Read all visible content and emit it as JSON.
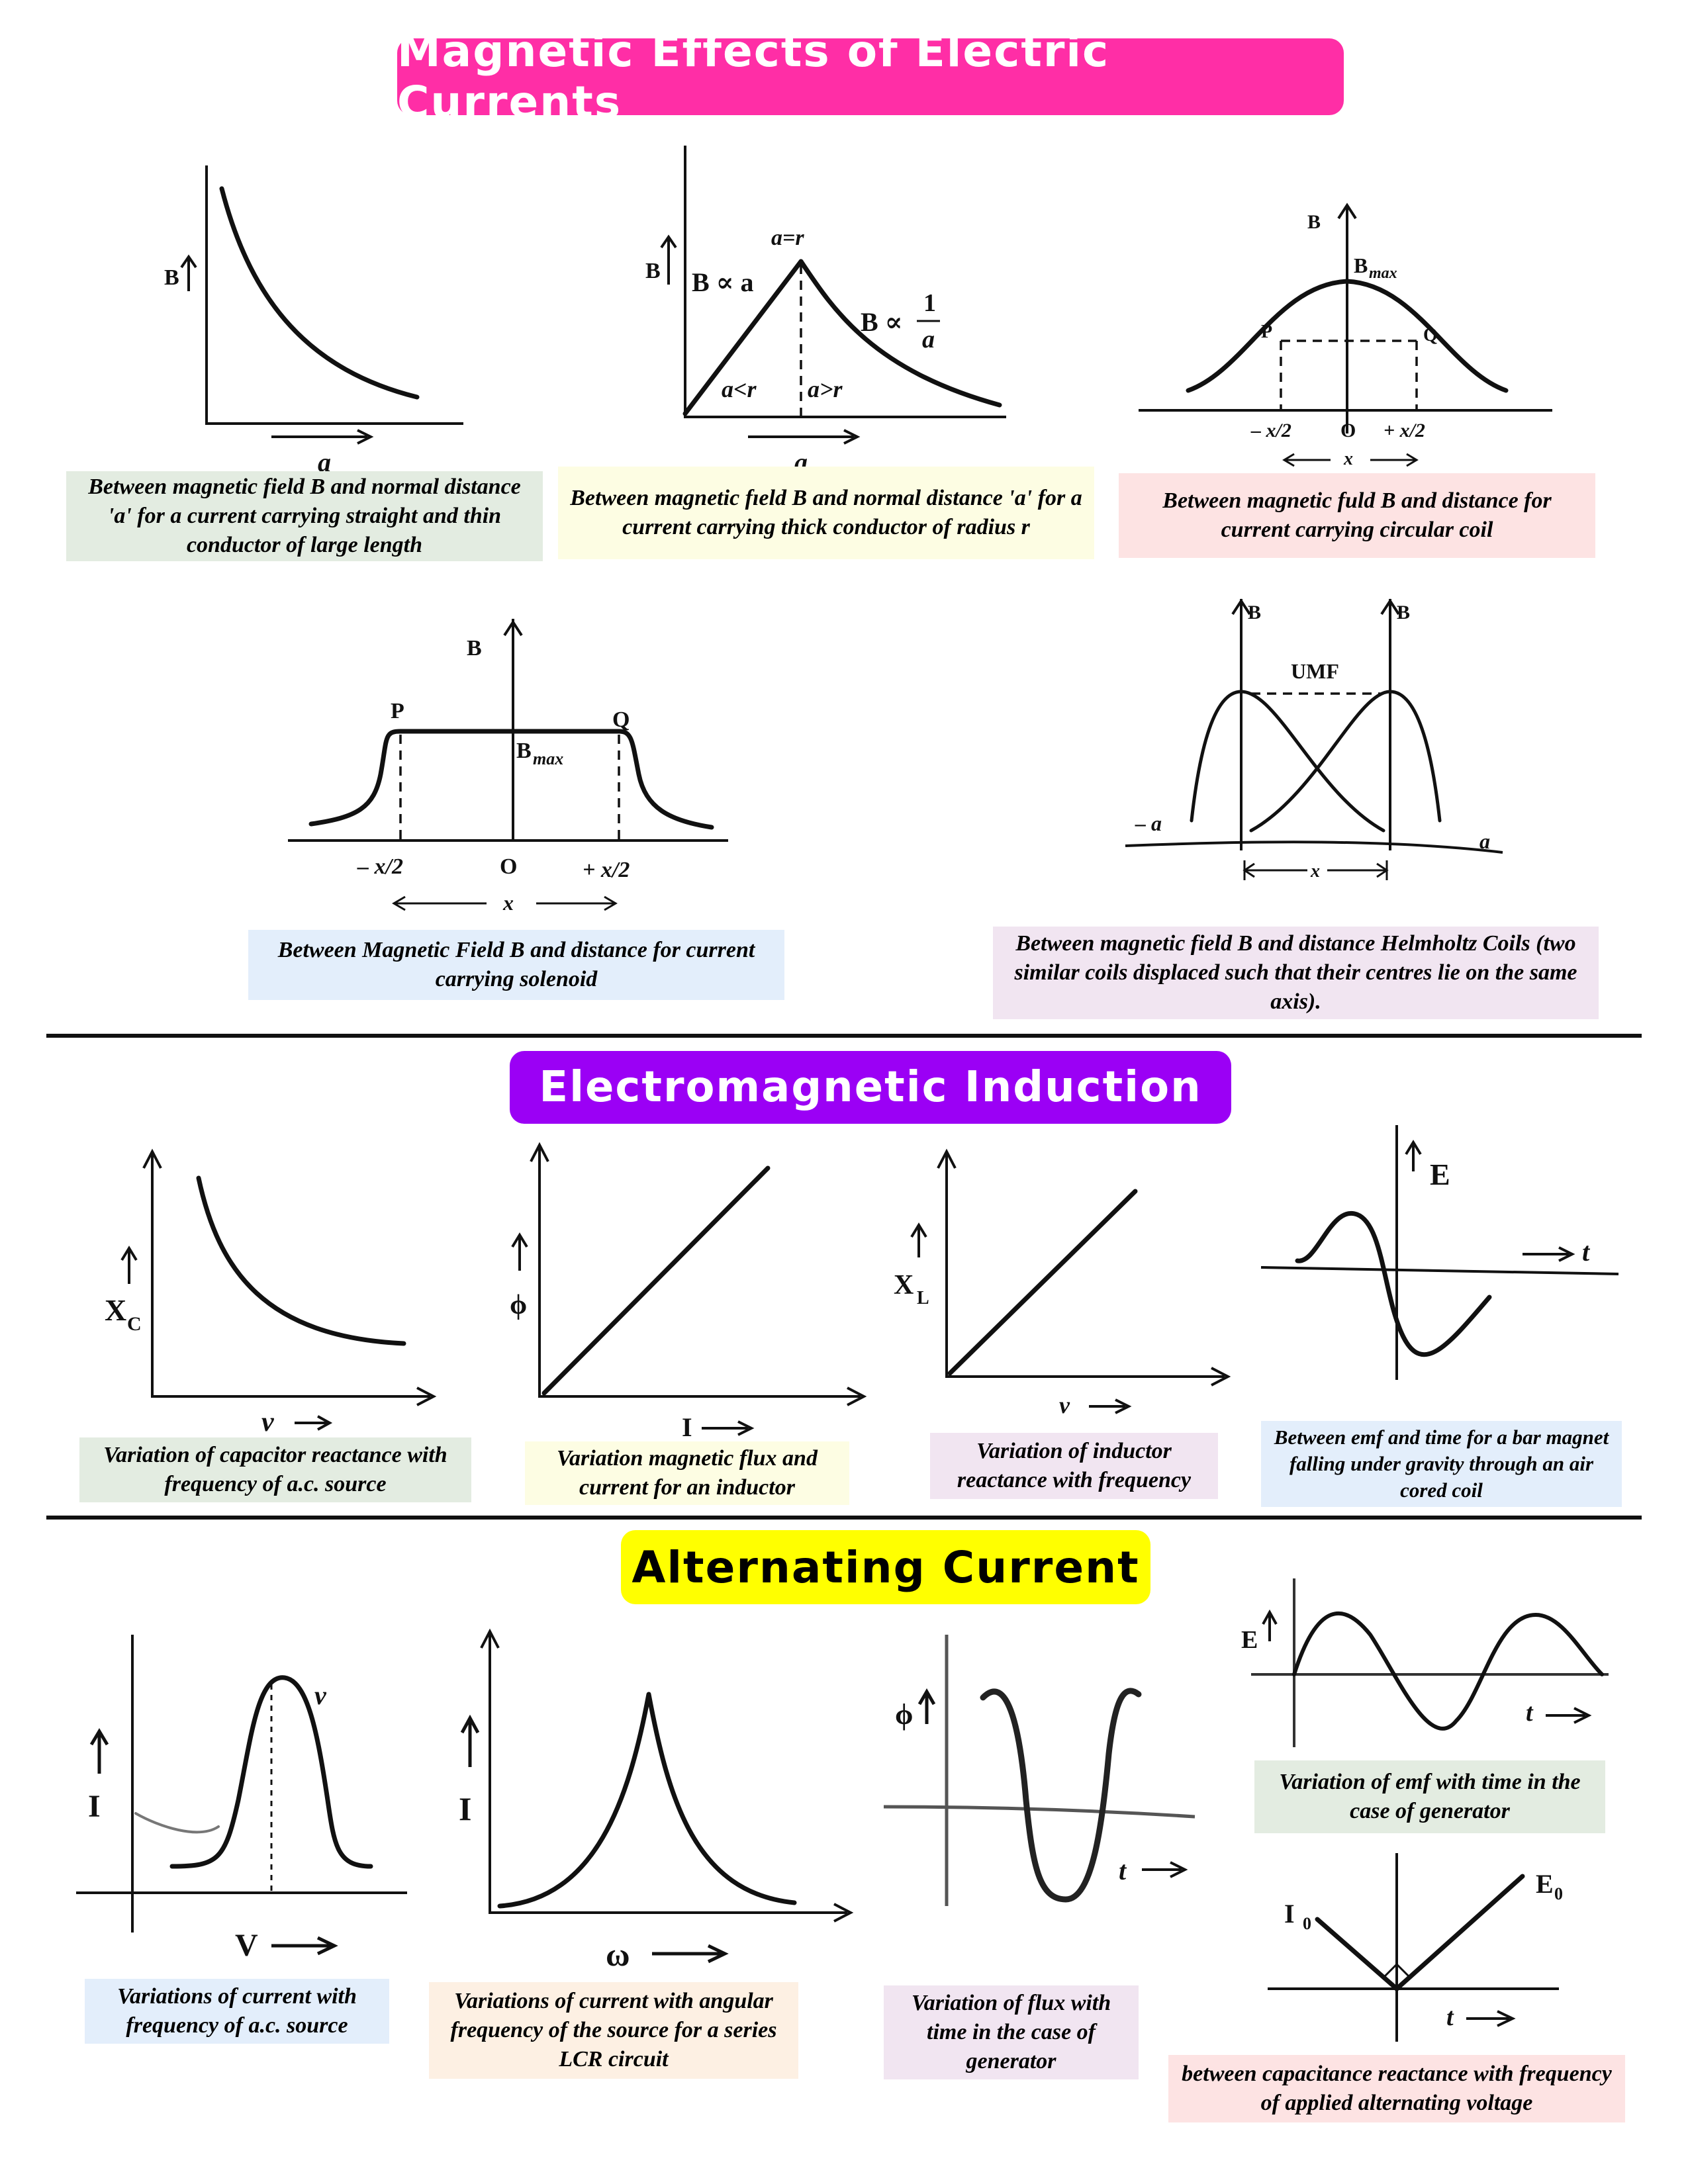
{
  "colors": {
    "pink": "#ff2ea6",
    "purple": "#9b00f5",
    "yellow": "#ffff00",
    "green": "#e3ece1",
    "yellowbox": "#fdfde3",
    "pinkbox": "#fde3e3",
    "bluebox": "#e3eefb",
    "lavender": "#f1e5f1",
    "peach": "#fdf0e3"
  },
  "sections": {
    "magnetic": {
      "title": "Magnetic Effects of Electric Currents"
    },
    "induction": {
      "title": "Electromagnetic Induction"
    },
    "ac": {
      "title": "Alternating Current"
    }
  },
  "figures": {
    "f1": {
      "y": "B",
      "x": "a",
      "caption": "Between magnetic field B and normal distance 'a' for a current carrying straight and thin conductor of large length"
    },
    "f2": {
      "y": "B",
      "x": "a",
      "top": "a=r",
      "left_rel": "B ∝ a",
      "right_rel": "B ∝",
      "frac_num": "1",
      "frac_den": "a",
      "left_region": "a<r",
      "right_region": "a>r",
      "caption": "Between magnetic fıeld B and normal distance 'a' for a current carrying thick conductor of radius r"
    },
    "f3": {
      "y": "B",
      "peak": "B",
      "peak_sub": "max",
      "p": "P",
      "q": "Q",
      "xl": "– x/2",
      "xo": "O",
      "xr": "+ x/2",
      "span": "x",
      "caption": "Between magnetic fuld B and distance for current carrying circular coil"
    },
    "f4": {
      "y": "B",
      "peak": "B",
      "peak_sub": "max",
      "p": "P",
      "q": "Q",
      "xl": "– x/2",
      "xo": "O",
      "xr": "+ x/2",
      "span": "x",
      "caption": "Between Magnetic Field B and distance for current carrying solenoid"
    },
    "f5": {
      "y1": "B",
      "y2": "B",
      "umf": "UMF",
      "neg": "– a",
      "pos": "a",
      "span": "x",
      "caption": "Between magnetic field B and distance Helmholtz Coils (two similar coils displaced such that their centres lie on the same axis)."
    },
    "f6": {
      "y": "X",
      "y_sub": "C",
      "x": "ν",
      "caption": "Variation of capacitor reactance with frequency of a.c. source"
    },
    "f7": {
      "y": "ϕ",
      "x": "I",
      "caption": "Variation magnetic flux and current for an inductor"
    },
    "f8": {
      "y": "X",
      "y_sub": "L",
      "x": "ν",
      "caption": "Variation of inductor reactance with frequency"
    },
    "f9": {
      "y": "E",
      "x": "t",
      "caption": "Between emf and time for a bar magnet falling under gravity through an air cored coil"
    },
    "f10": {
      "y": "I",
      "x": "V",
      "peak": "ν",
      "caption": "Variations of current with frequency of a.c. source"
    },
    "f11": {
      "y": "I",
      "x": "ω",
      "caption": "Variations of current with angular frequency of the source for a series LCR circuit"
    },
    "f12": {
      "y": "ϕ",
      "x": "t",
      "caption": "Variation of flux with time in the case of generator"
    },
    "f13": {
      "y": "E",
      "x": "t",
      "caption": "Variation of emf with time in the case of generator"
    },
    "f14": {
      "left": "I",
      "left_sub": "0",
      "right": "E",
      "right_sub": "0",
      "x": "t",
      "caption": "between capacitance reactance with frequency of applied alternating voltage"
    }
  }
}
